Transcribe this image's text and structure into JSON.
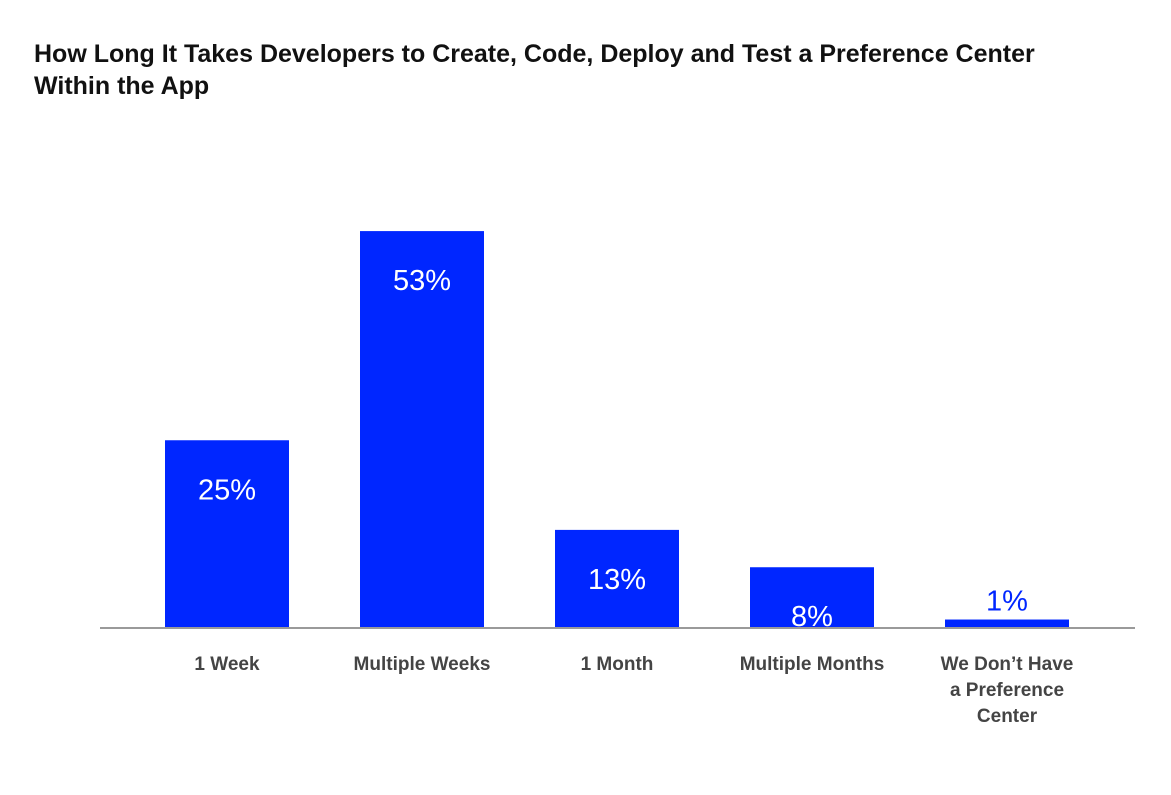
{
  "chart_data": {
    "type": "bar",
    "title": "How Long It Takes Developers to Create, Code, Deploy and Test a Preference Center\nWithin the App",
    "xlabel": "",
    "ylabel": "",
    "ylim": [
      0,
      60
    ],
    "grid": false,
    "legend": "none",
    "categories": [
      [
        "1 Week"
      ],
      [
        "Multiple Weeks"
      ],
      [
        "1 Month"
      ],
      [
        "Multiple Months"
      ],
      [
        "We Don’t Have",
        "a Preference",
        "Center"
      ]
    ],
    "values": [
      25,
      53,
      13,
      8,
      1
    ],
    "labels": [
      "25%",
      "53%",
      "13%",
      "8%",
      "1%"
    ]
  },
  "colors": {
    "bar": "#0026ff",
    "axis": "#9a9a9a",
    "title": "#111111",
    "category_text": "#444444"
  }
}
